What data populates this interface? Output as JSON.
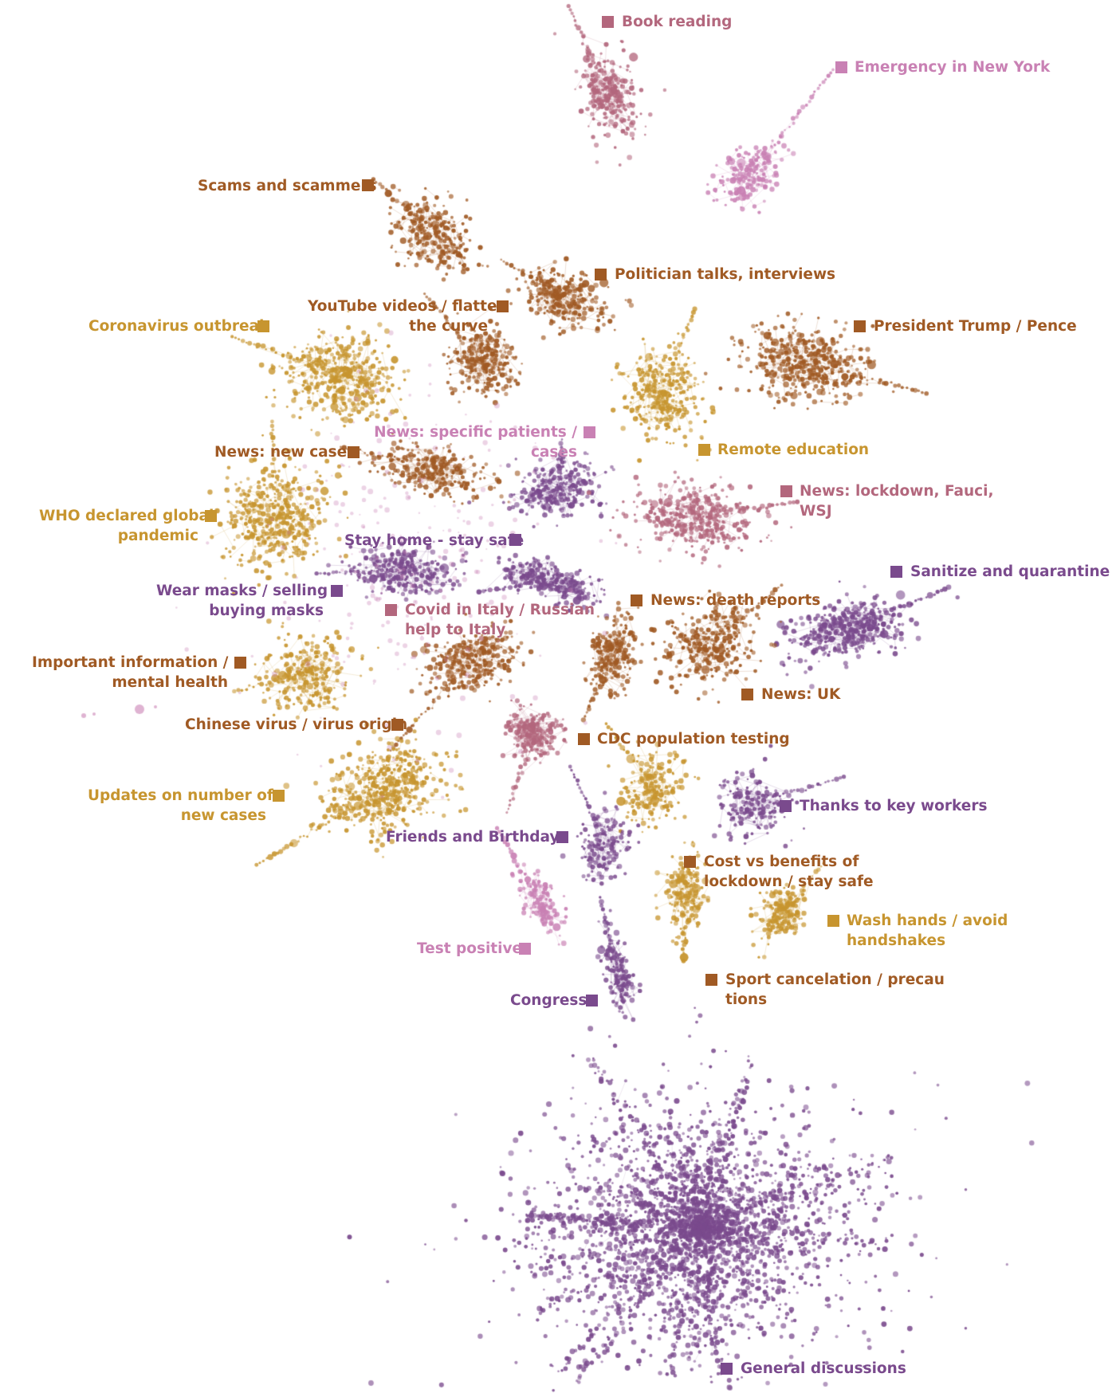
{
  "colors": {
    "orange": "#a05a24",
    "gold": "#c7952f",
    "rose": "#b3677d",
    "pink": "#c981b4",
    "purple": "#7a4a8d"
  },
  "clusters": [
    {
      "label": "Book reading",
      "color": "rose"
    },
    {
      "label": "Emergency in New York",
      "color": "pink"
    },
    {
      "label": "Scams and scammers",
      "color": "orange"
    },
    {
      "label": "Politician talks, interviews",
      "color": "orange"
    },
    {
      "label": "YouTube videos / flatten the curve",
      "color": "orange"
    },
    {
      "label": "Coronavirus outbreak",
      "color": "gold"
    },
    {
      "label": "President Trump / Pence",
      "color": "orange"
    },
    {
      "label": "News: specific patients / cases",
      "color": "pink"
    },
    {
      "label": "Remote education",
      "color": "gold"
    },
    {
      "label": "News: new cases",
      "color": "orange"
    },
    {
      "label": "News: lockdown, Fauci, WSJ",
      "color": "rose"
    },
    {
      "label": "WHO declared global pandemic",
      "color": "gold"
    },
    {
      "label": "Stay home - stay safe",
      "color": "purple"
    },
    {
      "label": "Sanitize and quarantine",
      "color": "purple"
    },
    {
      "label": "Wear masks / selling buying masks",
      "color": "purple"
    },
    {
      "label": "Covid in Italy / Russian help to Italy",
      "color": "rose"
    },
    {
      "label": "News: death reports",
      "color": "orange"
    },
    {
      "label": "Important information / mental health",
      "color": "orange"
    },
    {
      "label": "News: UK",
      "color": "orange"
    },
    {
      "label": "Chinese virus / virus origin",
      "color": "orange"
    },
    {
      "label": "CDC population testing",
      "color": "orange"
    },
    {
      "label": "Updates on number of new cases",
      "color": "gold"
    },
    {
      "label": "Thanks to key workers",
      "color": "purple"
    },
    {
      "label": "Friends and Birthdays",
      "color": "purple"
    },
    {
      "label": "Cost vs benefits of lockdown / stay safe",
      "color": "orange"
    },
    {
      "label": "Wash hands / avoid handshakes",
      "color": "gold"
    },
    {
      "label": "Test positive",
      "color": "pink"
    },
    {
      "label": "Sport cancelation / precautions",
      "color": "orange"
    },
    {
      "label": "Congress",
      "color": "purple"
    },
    {
      "label": "General discussions",
      "color": "purple"
    }
  ],
  "labels": {
    "book_reading": "Book reading",
    "emergency_ny": "Emergency in New York",
    "scams": "Scams and scammers",
    "politician": "Politician talks, interviews",
    "youtube_l1": "YouTube videos / flatten",
    "youtube_l2": "the curve",
    "outbreak": "Coronavirus outbreak",
    "trump": "President Trump / Pence",
    "specific_l1": "News: specific patients /",
    "specific_l2": "cases",
    "remote_edu": "Remote education",
    "new_cases": "News: new cases",
    "lockdown_l1": "News: lockdown, Fauci,",
    "lockdown_l2": "WSJ",
    "who_l1": "WHO declared global",
    "who_l2": "pandemic",
    "stay_home": "Stay home - stay safe",
    "sanitize": "Sanitize and quarantine",
    "masks_l1": "Wear masks / selling",
    "masks_l2": "buying masks",
    "italy_l1": "Covid in Italy / Russian",
    "italy_l2": "help to Italy",
    "death": "News: death reports",
    "important_l1": "Important information /",
    "important_l2": "mental health",
    "uk": "News: UK",
    "chinese": "Chinese virus / virus origin",
    "cdc": "CDC population testing",
    "updates_l1": "Updates on number of",
    "updates_l2": "new cases",
    "thanks": "Thanks to key workers",
    "friends": "Friends and Birthdays",
    "cost_l1": "Cost vs benefits of",
    "cost_l2": "lockdown / stay safe",
    "wash_l1": "Wash hands / avoid",
    "wash_l2": "handshakes",
    "test_positive": "Test positive",
    "sport_l1": "Sport cancelation / precau",
    "sport_l2": "tions",
    "congress": "Congress",
    "general": "General discussions"
  }
}
